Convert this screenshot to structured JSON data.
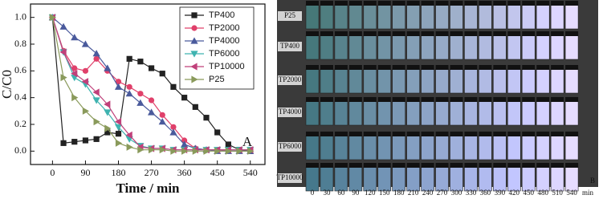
{
  "chart_data": {
    "type": "line",
    "xlabel": "Time / min",
    "ylabel": "C/C0",
    "annotation": "A",
    "x": [
      0,
      30,
      60,
      90,
      120,
      150,
      180,
      210,
      240,
      270,
      300,
      330,
      360,
      390,
      420,
      450,
      480,
      510,
      540
    ],
    "xlim": [
      -60,
      580
    ],
    "xticks": [
      0,
      90,
      180,
      270,
      360,
      450,
      540
    ],
    "ylim": [
      -0.1,
      1.1
    ],
    "yticks": [
      {
        "value": 0,
        "label": "0.0"
      },
      {
        "value": 0.2,
        "label": "0.2"
      },
      {
        "value": 0.4,
        "label": "0.4"
      },
      {
        "value": 0.6,
        "label": "0.6"
      },
      {
        "value": 0.8,
        "label": "0.8"
      },
      {
        "value": 1,
        "label": "1.0"
      }
    ],
    "legend": "upper right",
    "series": [
      {
        "name": "TP400",
        "color": "#222222",
        "marker": "square",
        "values": [
          1.0,
          0.06,
          0.07,
          0.08,
          0.09,
          0.14,
          0.13,
          0.69,
          0.67,
          0.62,
          0.58,
          0.48,
          0.4,
          0.33,
          0.25,
          0.14,
          0.05,
          0.01,
          0.0
        ]
      },
      {
        "name": "TP2000",
        "color": "#e0406a",
        "marker": "circle",
        "values": [
          1.0,
          0.75,
          0.62,
          0.6,
          0.69,
          0.6,
          0.52,
          0.48,
          0.43,
          0.38,
          0.27,
          0.18,
          0.08,
          0.02,
          0.01,
          0.01,
          0.0,
          0.0,
          0.0
        ]
      },
      {
        "name": "TP4000",
        "color": "#4a5a9c",
        "marker": "triangle-up",
        "values": [
          1.0,
          0.93,
          0.85,
          0.8,
          0.73,
          0.62,
          0.48,
          0.43,
          0.36,
          0.29,
          0.22,
          0.14,
          0.05,
          0.02,
          0.01,
          0.0,
          0.0,
          0.0,
          0.0
        ]
      },
      {
        "name": "TP6000",
        "color": "#3fb3b0",
        "marker": "triangle-down",
        "values": [
          1.0,
          0.74,
          0.55,
          0.5,
          0.38,
          0.29,
          0.18,
          0.09,
          0.04,
          0.02,
          0.02,
          0.01,
          0.01,
          0.01,
          0.01,
          0.01,
          0.01,
          0.01,
          0.01
        ]
      },
      {
        "name": "TP10000",
        "color": "#c0407a",
        "marker": "triangle-left",
        "values": [
          1.0,
          0.74,
          0.58,
          0.52,
          0.44,
          0.35,
          0.22,
          0.12,
          0.03,
          0.02,
          0.02,
          0.01,
          0.01,
          0.01,
          0.01,
          0.01,
          0.01,
          0.01,
          0.01
        ]
      },
      {
        "name": "P25",
        "color": "#8a9a5b",
        "marker": "triangle-right",
        "values": [
          1.0,
          0.55,
          0.4,
          0.3,
          0.22,
          0.17,
          0.06,
          0.03,
          0.01,
          0.01,
          0.01,
          0.0,
          0.0,
          0.0,
          0.0,
          0.0,
          0.0,
          0.0,
          0.0
        ]
      }
    ]
  },
  "photo_panel": {
    "rows": [
      "P25",
      "TP400",
      "TP2000",
      "TP4000",
      "TP6000",
      "TP10000"
    ],
    "columns": [
      "0",
      "30",
      "60",
      "90",
      "120",
      "150",
      "180",
      "210",
      "240",
      "270",
      "300",
      "330",
      "360",
      "390",
      "420",
      "450",
      "480",
      "510",
      "540"
    ],
    "unit": "min",
    "label": "B"
  }
}
